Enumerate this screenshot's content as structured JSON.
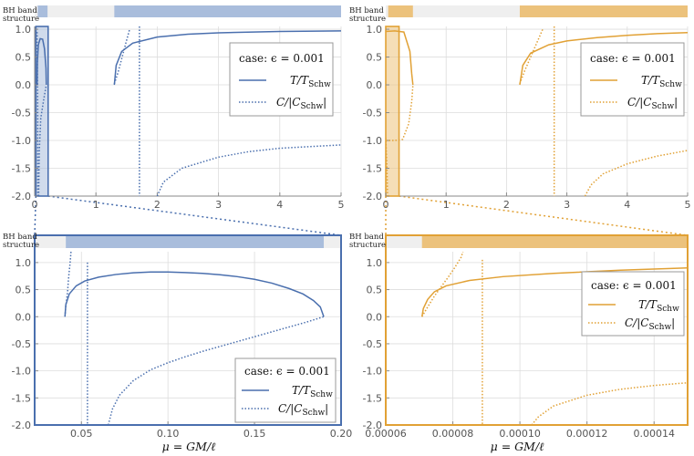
{
  "colors": {
    "blue": "#4a6fae",
    "orange": "#e1a135",
    "blue_band": "#a9bddc",
    "orange_band": "#ecc27c",
    "grid": "#dddddd",
    "band_empty": "#efefef"
  },
  "band_label": [
    "BH band",
    "structure"
  ],
  "legend": {
    "case_label": "case:",
    "case_value": "ϵ = 0.001",
    "t_label": "T/T",
    "t_sub": "Schw",
    "c_label": "C/|C",
    "c_sub": "Schw",
    "c_close": "|"
  },
  "x_axis_label": "μ = GM/ℓ",
  "chart_data": [
    {
      "id": "top-left",
      "type": "line",
      "color": "blue",
      "xlim": [
        0,
        5
      ],
      "ylim": [
        -2,
        1.05
      ],
      "xticks": [
        {
          "v": 0,
          "t": "0"
        },
        {
          "v": 1,
          "t": "1"
        },
        {
          "v": 2,
          "t": "2"
        },
        {
          "v": 3,
          "t": "3"
        },
        {
          "v": 4,
          "t": "4"
        },
        {
          "v": 5,
          "t": "5"
        }
      ],
      "yticks": [
        {
          "v": 1,
          "t": "1.0"
        },
        {
          "v": 0.5,
          "t": "0.5"
        },
        {
          "v": 0,
          "t": "0.0"
        },
        {
          "v": -0.5,
          "t": "-0.5"
        },
        {
          "v": -1,
          "t": "-1.0"
        },
        {
          "v": -1.5,
          "t": "-1.5"
        },
        {
          "v": -2,
          "t": "-2.0"
        }
      ],
      "bands": [
        [
          0.05,
          0.21
        ],
        [
          1.3,
          5
        ]
      ],
      "highlight": [
        0.02,
        0.22
      ],
      "series": [
        {
          "kind": "T",
          "points": [
            [
              0.04,
              0
            ],
            [
              0.045,
              0.4
            ],
            [
              0.06,
              0.72
            ],
            [
              0.09,
              0.83
            ],
            [
              0.13,
              0.82
            ],
            [
              0.16,
              0.65
            ],
            [
              0.185,
              0.3
            ],
            [
              0.19,
              0
            ]
          ]
        },
        {
          "kind": "T",
          "points": [
            [
              1.3,
              0
            ],
            [
              1.33,
              0.35
            ],
            [
              1.42,
              0.6
            ],
            [
              1.6,
              0.75
            ],
            [
              2,
              0.86
            ],
            [
              2.5,
              0.91
            ],
            [
              3,
              0.935
            ],
            [
              4,
              0.96
            ],
            [
              5,
              0.97
            ]
          ]
        },
        {
          "kind": "C",
          "points": [
            [
              0.04,
              0.95
            ],
            [
              0.045,
              0.4
            ],
            [
              0.05,
              -0.5
            ],
            [
              0.05,
              -2
            ]
          ]
        },
        {
          "kind": "C",
          "points": [
            [
              0.065,
              -2
            ],
            [
              0.075,
              -1.2
            ],
            [
              0.1,
              -0.6
            ],
            [
              0.15,
              -0.25
            ],
            [
              0.19,
              0
            ]
          ]
        },
        {
          "kind": "C",
          "points": [
            [
              1.3,
              0.02
            ],
            [
              1.36,
              0.22
            ],
            [
              1.44,
              0.55
            ],
            [
              1.5,
              0.8
            ],
            [
              1.55,
              1.0
            ]
          ]
        },
        {
          "kind": "C",
          "points": [
            [
              1.71,
              1.05
            ],
            [
              1.71,
              -2
            ]
          ]
        },
        {
          "kind": "C",
          "points": [
            [
              2.0,
              -2
            ],
            [
              2.1,
              -1.75
            ],
            [
              2.4,
              -1.5
            ],
            [
              3,
              -1.3
            ],
            [
              3.5,
              -1.2
            ],
            [
              4,
              -1.14
            ],
            [
              5,
              -1.08
            ]
          ]
        }
      ]
    },
    {
      "id": "top-right",
      "type": "line",
      "color": "orange",
      "xlim": [
        0,
        5
      ],
      "ylim": [
        -2,
        1.05
      ],
      "xticks": [
        {
          "v": 0,
          "t": "0"
        },
        {
          "v": 1,
          "t": "1"
        },
        {
          "v": 2,
          "t": "2"
        },
        {
          "v": 3,
          "t": "3"
        },
        {
          "v": 4,
          "t": "4"
        },
        {
          "v": 5,
          "t": "5"
        }
      ],
      "yticks": [
        {
          "v": 1,
          "t": "1.0"
        },
        {
          "v": 0.5,
          "t": "0.5"
        },
        {
          "v": 0,
          "t": "0.0"
        },
        {
          "v": -0.5,
          "t": "-0.5"
        },
        {
          "v": -1,
          "t": "-1.0"
        },
        {
          "v": -1.5,
          "t": "-1.5"
        },
        {
          "v": -2,
          "t": "-2.0"
        }
      ],
      "bands": [
        [
          0.04,
          0.45
        ],
        [
          2.22,
          5
        ]
      ],
      "highlight": [
        0.0,
        0.22
      ],
      "series": [
        {
          "kind": "T",
          "points": [
            [
              0.0,
              0.96
            ],
            [
              0.15,
              0.97
            ],
            [
              0.3,
              0.95
            ],
            [
              0.4,
              0.6
            ],
            [
              0.43,
              0.2
            ],
            [
              0.45,
              0
            ]
          ]
        },
        {
          "kind": "T",
          "points": [
            [
              2.22,
              0
            ],
            [
              2.27,
              0.35
            ],
            [
              2.4,
              0.57
            ],
            [
              2.7,
              0.72
            ],
            [
              3,
              0.79
            ],
            [
              3.5,
              0.85
            ],
            [
              4,
              0.89
            ],
            [
              4.5,
              0.92
            ],
            [
              5,
              0.94
            ]
          ]
        },
        {
          "kind": "C",
          "points": [
            [
              0.0,
              -1.0
            ],
            [
              0.15,
              -1.0
            ],
            [
              0.28,
              -0.98
            ],
            [
              0.38,
              -0.7
            ],
            [
              0.43,
              -0.3
            ],
            [
              0.45,
              0
            ]
          ]
        },
        {
          "kind": "C",
          "points": [
            [
              0.0,
              -0.95
            ],
            [
              0.02,
              -1.5
            ],
            [
              0.03,
              -2
            ]
          ]
        },
        {
          "kind": "C",
          "points": [
            [
              2.22,
              0.02
            ],
            [
              2.3,
              0.25
            ],
            [
              2.4,
              0.5
            ],
            [
              2.5,
              0.75
            ],
            [
              2.6,
              1.0
            ]
          ]
        },
        {
          "kind": "C",
          "points": [
            [
              2.79,
              1.05
            ],
            [
              2.79,
              -2
            ]
          ]
        },
        {
          "kind": "C",
          "points": [
            [
              3.3,
              -2
            ],
            [
              3.4,
              -1.8
            ],
            [
              3.6,
              -1.6
            ],
            [
              4,
              -1.42
            ],
            [
              4.5,
              -1.28
            ],
            [
              5,
              -1.18
            ]
          ]
        }
      ]
    },
    {
      "id": "bottom-left",
      "type": "line",
      "color": "blue",
      "xlim": [
        0.023,
        0.2
      ],
      "ylim": [
        -2,
        1.2
      ],
      "xticks": [
        {
          "v": 0.05,
          "t": "0.05"
        },
        {
          "v": 0.1,
          "t": "0.10"
        },
        {
          "v": 0.15,
          "t": "0.15"
        },
        {
          "v": 0.2,
          "t": "0.20"
        }
      ],
      "yticks": [
        {
          "v": 1,
          "t": "1.0"
        },
        {
          "v": 0.5,
          "t": "0.5"
        },
        {
          "v": 0,
          "t": "0.0"
        },
        {
          "v": -0.5,
          "t": "-0.5"
        },
        {
          "v": -1,
          "t": "-1.0"
        },
        {
          "v": -1.5,
          "t": "-1.5"
        },
        {
          "v": -2,
          "t": "-2.0"
        }
      ],
      "bands": [
        [
          0.041,
          0.19
        ]
      ],
      "highlight": null,
      "series": [
        {
          "kind": "T",
          "points": [
            [
              0.0405,
              0.0
            ],
            [
              0.041,
              0.22
            ],
            [
              0.043,
              0.42
            ],
            [
              0.047,
              0.57
            ],
            [
              0.052,
              0.66
            ],
            [
              0.06,
              0.73
            ],
            [
              0.07,
              0.78
            ],
            [
              0.08,
              0.81
            ],
            [
              0.09,
              0.825
            ],
            [
              0.1,
              0.825
            ],
            [
              0.11,
              0.815
            ],
            [
              0.12,
              0.8
            ],
            [
              0.13,
              0.775
            ],
            [
              0.14,
              0.74
            ],
            [
              0.15,
              0.69
            ],
            [
              0.16,
              0.62
            ],
            [
              0.17,
              0.52
            ],
            [
              0.178,
              0.42
            ],
            [
              0.184,
              0.3
            ],
            [
              0.188,
              0.18
            ],
            [
              0.19,
              0.0
            ]
          ]
        },
        {
          "kind": "C",
          "points": [
            [
              0.0405,
              0.0
            ],
            [
              0.041,
              0.2
            ],
            [
              0.042,
              0.45
            ],
            [
              0.0425,
              0.68
            ],
            [
              0.043,
              0.85
            ],
            [
              0.0435,
              1.0
            ],
            [
              0.044,
              1.2
            ]
          ]
        },
        {
          "kind": "C",
          "points": [
            [
              0.0535,
              1.0
            ],
            [
              0.0535,
              -2
            ]
          ]
        },
        {
          "kind": "C",
          "points": [
            [
              0.0655,
              -2
            ],
            [
              0.068,
              -1.7
            ],
            [
              0.072,
              -1.45
            ],
            [
              0.08,
              -1.18
            ],
            [
              0.09,
              -0.98
            ],
            [
              0.1,
              -0.85
            ],
            [
              0.11,
              -0.74
            ],
            [
              0.12,
              -0.64
            ],
            [
              0.13,
              -0.55
            ],
            [
              0.14,
              -0.46
            ],
            [
              0.15,
              -0.37
            ],
            [
              0.16,
              -0.28
            ],
            [
              0.17,
              -0.19
            ],
            [
              0.18,
              -0.1
            ],
            [
              0.19,
              0.0
            ]
          ]
        }
      ]
    },
    {
      "id": "bottom-right",
      "type": "line",
      "color": "orange",
      "xlim": [
        6e-05,
        0.00015
      ],
      "ylim": [
        -2,
        1.2
      ],
      "xticks": [
        {
          "v": 6e-05,
          "t": "0.00006"
        },
        {
          "v": 8e-05,
          "t": "0.00008"
        },
        {
          "v": 0.0001,
          "t": "0.00010"
        },
        {
          "v": 0.00012,
          "t": "0.00012"
        },
        {
          "v": 0.00014,
          "t": "0.00014"
        }
      ],
      "yticks": [
        {
          "v": 1,
          "t": "1.0"
        },
        {
          "v": 0.5,
          "t": "0.5"
        },
        {
          "v": 0,
          "t": "0.0"
        },
        {
          "v": -0.5,
          "t": "-0.5"
        },
        {
          "v": -1,
          "t": "-1.0"
        },
        {
          "v": -1.5,
          "t": "-1.5"
        },
        {
          "v": -2,
          "t": "-2.0"
        }
      ],
      "bands": [
        [
          7.08e-05,
          0.00015
        ]
      ],
      "highlight": null,
      "series": [
        {
          "kind": "T",
          "points": [
            [
              7.08e-05,
              0.0
            ],
            [
              7.12e-05,
              0.15
            ],
            [
              7.25e-05,
              0.32
            ],
            [
              7.45e-05,
              0.46
            ],
            [
              7.8e-05,
              0.57
            ],
            [
              8.5e-05,
              0.67
            ],
            [
              9.5e-05,
              0.74
            ],
            [
              0.00011,
              0.8
            ],
            [
              0.00013,
              0.86
            ],
            [
              0.00015,
              0.9
            ]
          ]
        },
        {
          "kind": "C",
          "points": [
            [
              7.08e-05,
              0.0
            ],
            [
              7.25e-05,
              0.18
            ],
            [
              7.45e-05,
              0.38
            ],
            [
              7.65e-05,
              0.55
            ],
            [
              7.85e-05,
              0.72
            ],
            [
              8.05e-05,
              0.9
            ],
            [
              8.25e-05,
              1.1
            ],
            [
              8.3e-05,
              1.2
            ]
          ]
        },
        {
          "kind": "C",
          "points": [
            [
              8.88e-05,
              1.05
            ],
            [
              8.88e-05,
              -2
            ]
          ]
        },
        {
          "kind": "C",
          "points": [
            [
              0.0001035,
              -2
            ],
            [
              0.0001055,
              -1.85
            ],
            [
              0.00011,
              -1.65
            ],
            [
              0.00012,
              -1.45
            ],
            [
              0.00013,
              -1.34
            ],
            [
              0.00014,
              -1.27
            ],
            [
              0.00015,
              -1.22
            ]
          ]
        }
      ]
    }
  ]
}
